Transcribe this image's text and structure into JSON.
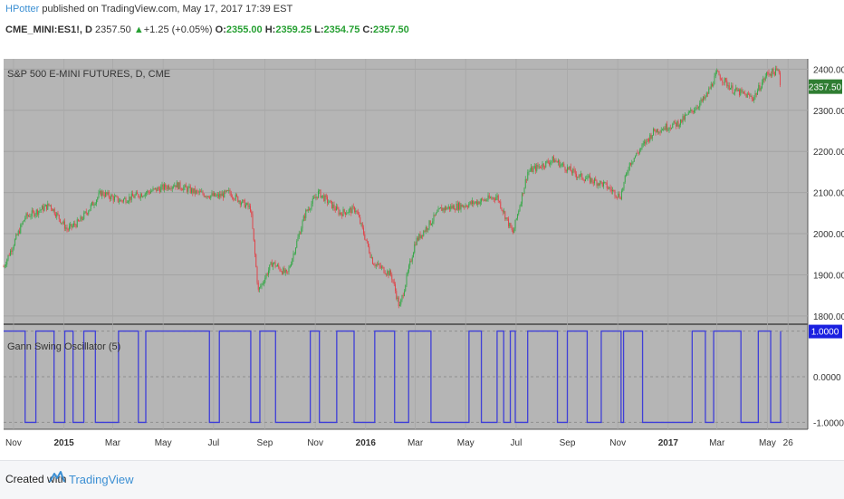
{
  "header": {
    "author": "HPotter",
    "published": " published on TradingView.com, May 17, 2017 17:39 EST",
    "symbol": "CME_MINI:ES1!, D",
    "last": "2357.50",
    "change": "+1.25 (+0.05%)",
    "o_label": "O:",
    "o": "2355.00",
    "h_label": "H:",
    "h": "2359.25",
    "l_label": "L:",
    "l": "2354.75",
    "c_label": "C:",
    "c": "2357.50"
  },
  "footer": {
    "created": "Created with",
    "brand": "TradingView"
  },
  "colors": {
    "plot_bg": "#b5b5b5",
    "up": "#39a84a",
    "down": "#e0454b",
    "osc": "#3f3fd8",
    "price_label": "#2f7d32",
    "osc_label": "#1a20e0"
  },
  "chart_data": [
    {
      "type": "candlestick",
      "title": "S&P 500 E-MINI FUTURES, D, CME",
      "ylim": [
        1780,
        2425
      ],
      "yticks": [
        "2400.00",
        "2300.00",
        "2200.00",
        "2100.00",
        "2000.00",
        "1900.00",
        "1800.00"
      ],
      "last_label": "2357.50",
      "x": [
        "2014-10-20",
        "2014-11-15",
        "2014-12-15",
        "2015-01-05",
        "2015-01-20",
        "2015-02-15",
        "2015-03-10",
        "2015-04-10",
        "2015-05-15",
        "2015-06-10",
        "2015-07-05",
        "2015-07-20",
        "2015-08-15",
        "2015-08-24",
        "2015-09-10",
        "2015-09-28",
        "2015-10-20",
        "2015-11-05",
        "2015-12-01",
        "2015-12-20",
        "2016-01-10",
        "2016-02-01",
        "2016-02-11",
        "2016-03-01",
        "2016-04-01",
        "2016-05-01",
        "2016-06-08",
        "2016-06-27",
        "2016-07-15",
        "2016-08-15",
        "2016-09-15",
        "2016-10-15",
        "2016-11-04",
        "2016-11-15",
        "2016-12-15",
        "2017-01-15",
        "2017-02-15",
        "2017-03-01",
        "2017-03-20",
        "2017-04-14",
        "2017-05-01",
        "2017-05-15",
        "2017-05-17"
      ],
      "y": [
        1920,
        2040,
        2070,
        2010,
        2030,
        2100,
        2080,
        2100,
        2120,
        2100,
        2090,
        2100,
        2060,
        1860,
        1930,
        1900,
        2050,
        2100,
        2050,
        2060,
        1930,
        1900,
        1820,
        1980,
        2060,
        2070,
        2090,
        2000,
        2150,
        2180,
        2140,
        2120,
        2090,
        2170,
        2250,
        2270,
        2330,
        2390,
        2350,
        2330,
        2390,
        2395,
        2357.5
      ]
    },
    {
      "type": "line",
      "title": "Gann Swing Oscillator (5)",
      "ylim": [
        -1.15,
        1.15
      ],
      "yticks": [
        "1.0000",
        "0.0000",
        "-1.0000"
      ],
      "last_label": "1.0000",
      "x": [
        "2014-10-20",
        "2014-11-15",
        "2014-11-28",
        "2014-12-20",
        "2015-01-02",
        "2015-01-12",
        "2015-01-25",
        "2015-02-08",
        "2015-03-08",
        "2015-04-01",
        "2015-04-10",
        "2015-06-26",
        "2015-07-08",
        "2015-08-15",
        "2015-08-26",
        "2015-09-14",
        "2015-10-26",
        "2015-11-06",
        "2015-11-27",
        "2015-12-18",
        "2016-01-12",
        "2016-02-05",
        "2016-02-22",
        "2016-03-20",
        "2016-05-05",
        "2016-05-20",
        "2016-06-08",
        "2016-06-16",
        "2016-06-24",
        "2016-06-30",
        "2016-07-15",
        "2016-08-20",
        "2016-09-01",
        "2016-09-25",
        "2016-10-12",
        "2016-11-05",
        "2016-11-08",
        "2016-12-01",
        "2017-01-30",
        "2017-02-15",
        "2017-02-25",
        "2017-03-30",
        "2017-04-20",
        "2017-05-05",
        "2017-05-17"
      ],
      "y": [
        1,
        -1,
        1,
        -1,
        1,
        -1,
        1,
        -1,
        1,
        -1,
        1,
        -1,
        1,
        -1,
        1,
        -1,
        1,
        -1,
        1,
        -1,
        1,
        -1,
        1,
        -1,
        1,
        -1,
        1,
        -1,
        1,
        -1,
        1,
        -1,
        1,
        -1,
        1,
        -1,
        1,
        -1,
        1,
        -1,
        1,
        -1,
        1,
        -1,
        1
      ]
    }
  ],
  "x_axis": {
    "ticks": [
      "Nov",
      "2015",
      "Mar",
      "May",
      "Jul",
      "Sep",
      "Nov",
      "2016",
      "Mar",
      "May",
      "Jul",
      "Sep",
      "Nov",
      "2017",
      "Mar",
      "May",
      "26"
    ]
  }
}
